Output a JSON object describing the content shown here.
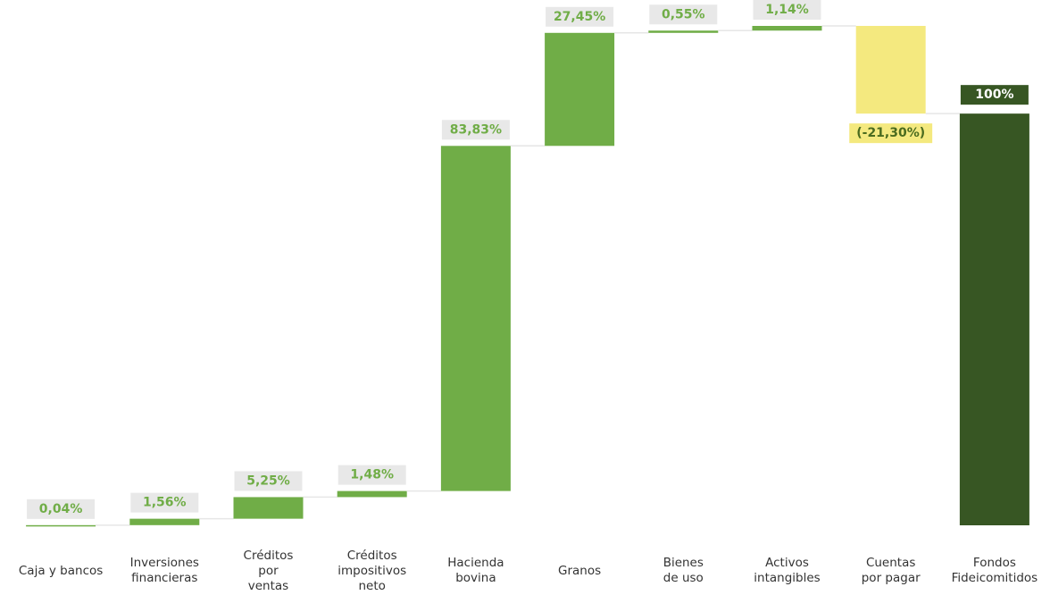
{
  "chart_data": {
    "type": "waterfall",
    "categories": [
      "Caja y bancos",
      "Inversiones\nfinancieras",
      "Créditos\npor\nventas",
      "Créditos\nimpositivos\nneto",
      "Hacienda\nbovina",
      "Granos",
      "Bienes\nde uso",
      "Activos\nintangibles",
      "Cuentas\npor pagar"
    ],
    "values": [
      0.04,
      1.56,
      5.25,
      1.48,
      83.83,
      27.45,
      0.55,
      1.14,
      -21.3
    ],
    "value_labels": [
      "0,04%",
      "1,56%",
      "5,25%",
      "1,48%",
      "83,83%",
      "27,45%",
      "0,55%",
      "1,14%",
      "(-21,30%)"
    ],
    "increase_color": "#70ad47",
    "decrease_color": "#f4e97f",
    "total": {
      "category": "Fondos\nFideicomitidos",
      "value": 100,
      "value_label": "100%",
      "color": "#375623"
    }
  }
}
